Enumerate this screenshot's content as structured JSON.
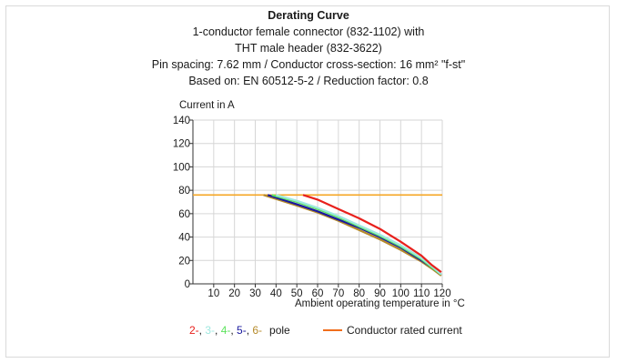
{
  "chart_data": {
    "type": "line",
    "title": "Derating Curve",
    "subtitle_lines": [
      "1-conductor female connector (832-1102) with",
      "THT male header (832-3622)",
      "Pin spacing: 7.62 mm / Conductor cross-section: 16 mm² \"f-st\"",
      "Based on: EN 60512-5-2 / Reduction factor: 0.8"
    ],
    "ylabel": "Current in A",
    "xlabel": "Ambient operating temperature in °C",
    "xlim": [
      0,
      120
    ],
    "ylim": [
      0,
      140
    ],
    "x_ticks": [
      10,
      20,
      30,
      40,
      50,
      60,
      70,
      80,
      90,
      100,
      110,
      120
    ],
    "y_ticks": [
      0,
      20,
      40,
      60,
      80,
      100,
      120,
      140
    ],
    "grid": true,
    "rated_current": {
      "name": "Conductor rated current",
      "color": "#f5a623",
      "value": 76
    },
    "series": [
      {
        "name": "2-",
        "color": "#e8201c",
        "x": [
          53,
          60,
          70,
          80,
          90,
          100,
          110,
          115,
          119.5
        ],
        "y": [
          76,
          72,
          64,
          56,
          47,
          36,
          24,
          16,
          10
        ]
      },
      {
        "name": "3-",
        "color": "#9fe8e0",
        "x": [
          40,
          50,
          60,
          70,
          80,
          90,
          100,
          110,
          115,
          119.5
        ],
        "y": [
          76,
          71,
          65,
          58,
          50,
          42,
          33,
          22,
          15,
          8
        ]
      },
      {
        "name": "4-",
        "color": "#5ee35e",
        "x": [
          38,
          50,
          60,
          70,
          80,
          90,
          100,
          110,
          115,
          119.5
        ],
        "y": [
          76,
          70,
          64,
          57,
          49,
          41,
          32,
          21,
          14,
          8
        ]
      },
      {
        "name": "5-",
        "color": "#1a1a9e",
        "x": [
          36,
          50,
          60,
          70,
          80,
          90,
          100,
          110,
          115,
          119.5
        ],
        "y": [
          76,
          68,
          62,
          55,
          48,
          40,
          31,
          20,
          14,
          8
        ]
      },
      {
        "name": "6-",
        "color": "#b58a2a",
        "x": [
          34,
          50,
          60,
          70,
          80,
          90,
          100,
          110,
          115,
          119.5
        ],
        "y": [
          76,
          67,
          61,
          54,
          46,
          38,
          29,
          19,
          13,
          7
        ]
      }
    ],
    "legend": {
      "suffix": "pole",
      "separator": ", "
    }
  }
}
